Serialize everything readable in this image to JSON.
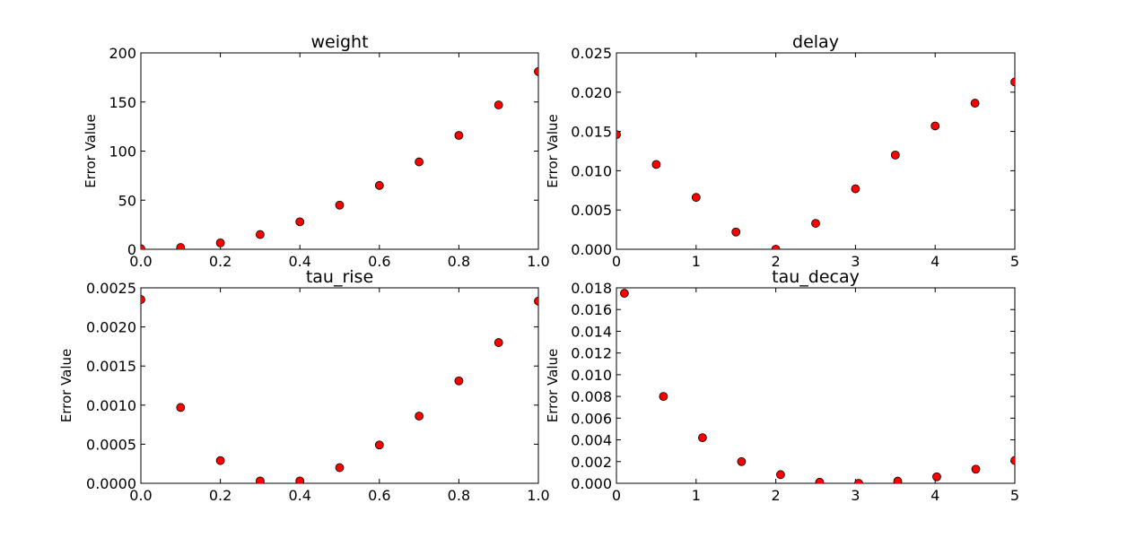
{
  "chart_data": [
    {
      "type": "scatter",
      "title": "weight",
      "xlabel": "",
      "ylabel": "Error Value",
      "xlim": [
        0,
        1.0
      ],
      "ylim": [
        0,
        200
      ],
      "xticks": [
        0.0,
        0.2,
        0.4,
        0.6,
        0.8,
        1.0
      ],
      "xtick_labels": [
        "0.0",
        "0.2",
        "0.4",
        "0.6",
        "0.8",
        "1.0"
      ],
      "yticks": [
        0,
        50,
        100,
        150,
        200
      ],
      "ytick_labels": [
        "0",
        "50",
        "100",
        "150",
        "200"
      ],
      "marker_color": "#ff0000",
      "x": [
        0.0,
        0.1,
        0.2,
        0.3,
        0.4,
        0.5,
        0.6,
        0.7,
        0.8,
        0.9,
        1.0
      ],
      "y": [
        0.5,
        1.8,
        6.5,
        15,
        28,
        45,
        65,
        89,
        116,
        147,
        181
      ]
    },
    {
      "type": "scatter",
      "title": "delay",
      "xlabel": "",
      "ylabel": "Error Value",
      "xlim": [
        0,
        5
      ],
      "ylim": [
        0,
        0.025
      ],
      "xticks": [
        0,
        1,
        2,
        3,
        4,
        5
      ],
      "xtick_labels": [
        "0",
        "1",
        "2",
        "3",
        "4",
        "5"
      ],
      "yticks": [
        0.0,
        0.005,
        0.01,
        0.015,
        0.02,
        0.025
      ],
      "ytick_labels": [
        "0.000",
        "0.005",
        "0.010",
        "0.015",
        "0.020",
        "0.025"
      ],
      "marker_color": "#ff0000",
      "x": [
        0,
        0.5,
        1.0,
        1.5,
        2.0,
        2.5,
        3.0,
        3.5,
        4.0,
        4.5,
        5.0
      ],
      "y": [
        0.0146,
        0.0108,
        0.0066,
        0.0022,
        0.0,
        0.0033,
        0.0077,
        0.012,
        0.0157,
        0.0186,
        0.0213
      ]
    },
    {
      "type": "scatter",
      "title": "tau_rise",
      "xlabel": "",
      "ylabel": "Error Value",
      "xlim": [
        0,
        1.0
      ],
      "ylim": [
        0,
        0.0025
      ],
      "xticks": [
        0.0,
        0.2,
        0.4,
        0.6,
        0.8,
        1.0
      ],
      "xtick_labels": [
        "0.0",
        "0.2",
        "0.4",
        "0.6",
        "0.8",
        "1.0"
      ],
      "yticks": [
        0.0,
        0.0005,
        0.001,
        0.0015,
        0.002,
        0.0025
      ],
      "ytick_labels": [
        "0.0000",
        "0.0005",
        "0.0010",
        "0.0015",
        "0.0020",
        "0.0025"
      ],
      "marker_color": "#ff0000",
      "x": [
        0.0,
        0.1,
        0.2,
        0.3,
        0.4,
        0.5,
        0.6,
        0.7,
        0.8,
        0.9,
        1.0
      ],
      "y": [
        0.00235,
        0.00097,
        0.00029,
        3e-05,
        3e-05,
        0.0002,
        0.00049,
        0.00086,
        0.00131,
        0.0018,
        0.00233
      ]
    },
    {
      "type": "scatter",
      "title": "tau_decay",
      "xlabel": "",
      "ylabel": "Error Value",
      "xlim": [
        0,
        5
      ],
      "ylim": [
        0,
        0.018
      ],
      "xticks": [
        0,
        1,
        2,
        3,
        4,
        5
      ],
      "xtick_labels": [
        "0",
        "1",
        "2",
        "3",
        "4",
        "5"
      ],
      "yticks": [
        0.0,
        0.002,
        0.004,
        0.006,
        0.008,
        0.01,
        0.012,
        0.014,
        0.016,
        0.018
      ],
      "ytick_labels": [
        "0.000",
        "0.002",
        "0.004",
        "0.006",
        "0.008",
        "0.010",
        "0.012",
        "0.014",
        "0.016",
        "0.018"
      ],
      "marker_color": "#ff0000",
      "x": [
        0.1,
        0.59,
        1.08,
        1.57,
        2.06,
        2.55,
        3.04,
        3.53,
        4.02,
        4.51,
        5.0
      ],
      "y": [
        0.0175,
        0.008,
        0.0042,
        0.002,
        0.0008,
        0.0001,
        0.0,
        0.0002,
        0.0006,
        0.0013,
        0.0021
      ]
    }
  ]
}
